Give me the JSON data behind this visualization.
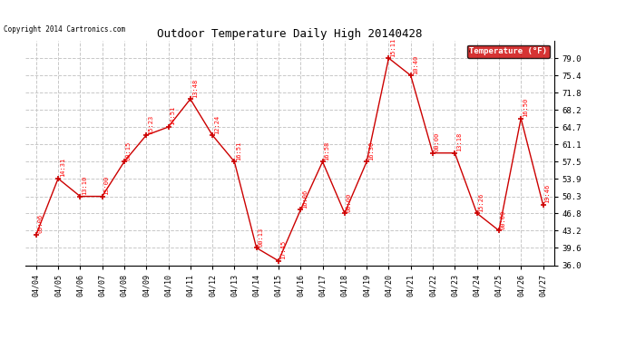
{
  "title": "Outdoor Temperature Daily High 20140428",
  "copyright": "Copyright 2014 Cartronics.com",
  "legend_label": "Temperature (°F)",
  "dates": [
    "04/04",
    "04/05",
    "04/06",
    "04/07",
    "04/08",
    "04/09",
    "04/10",
    "04/11",
    "04/12",
    "04/13",
    "04/14",
    "04/15",
    "04/16",
    "04/17",
    "04/18",
    "04/19",
    "04/20",
    "04/21",
    "04/22",
    "04/23",
    "04/24",
    "04/25",
    "04/26",
    "04/27"
  ],
  "temps": [
    42.3,
    54.0,
    50.3,
    50.3,
    57.5,
    63.0,
    64.7,
    70.5,
    63.0,
    57.5,
    39.6,
    36.9,
    47.5,
    57.5,
    46.8,
    57.5,
    79.0,
    75.4,
    59.3,
    59.3,
    46.8,
    43.2,
    66.5,
    48.6
  ],
  "time_labels": [
    "09:06",
    "14:31",
    "13:10",
    "15:00",
    "00:15",
    "15:23",
    "14:51",
    "13:48",
    "12:24",
    "16:51",
    "00:13",
    "17:45",
    "16:06",
    "16:58",
    "00:00",
    "16:30",
    "15:11",
    "10:40",
    "00:00",
    "13:18",
    "15:26",
    "00:00",
    "16:50",
    "19:46"
  ],
  "ylim_min": 36.0,
  "ylim_max": 82.6,
  "yticks": [
    36.0,
    39.6,
    43.2,
    46.8,
    50.3,
    53.9,
    57.5,
    61.1,
    64.7,
    68.2,
    71.8,
    75.4,
    79.0
  ],
  "bg_color": "#ffffff",
  "grid_color": "#c8c8c8",
  "line_color": "#cc0000",
  "label_color": "#ff0000",
  "legend_bg": "#cc0000",
  "legend_text": "#ffffff"
}
